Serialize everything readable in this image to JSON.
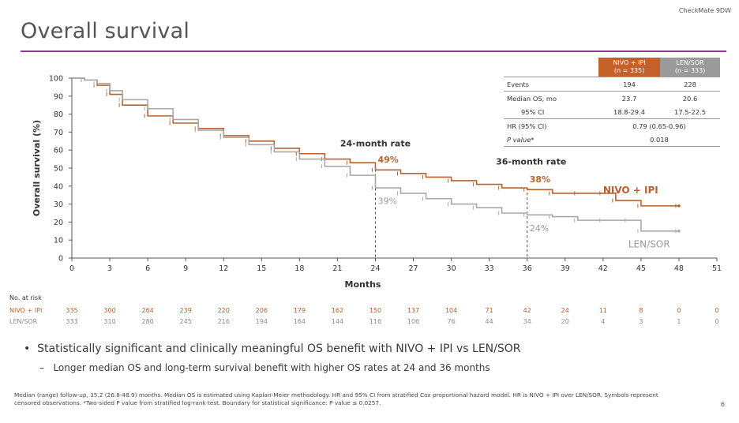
{
  "header": {
    "trial_label": "CheckMate 9DW",
    "title": "Overall survival"
  },
  "colors": {
    "nivo": "#b8622f",
    "lensor": "#a8a8a8",
    "accent": "#9b2f9b"
  },
  "table": {
    "col_nivo": [
      "NIVO + IPI",
      "(n = 335)"
    ],
    "col_len": [
      "LEN/SOR",
      "(n = 333)"
    ],
    "rows": [
      {
        "label": "Events",
        "nivo": "194",
        "len": "228"
      },
      {
        "label": "Median OS, mo",
        "nivo": "23.7",
        "len": "20.6"
      },
      {
        "label": "95% CI",
        "nivo": "18.8-29.4",
        "len": "17.5-22.5"
      },
      {
        "label": "HR (95% CI)",
        "span": "0.79 (0.65-0.96)"
      },
      {
        "label": "P value*",
        "span": "0.018"
      }
    ]
  },
  "chart_data": {
    "type": "line",
    "xlabel": "Months",
    "ylabel": "Overall survival (%)",
    "xlim": [
      0,
      51
    ],
    "ylim": [
      0,
      100
    ],
    "x_ticks": [
      0,
      3,
      6,
      9,
      12,
      15,
      18,
      21,
      24,
      27,
      30,
      33,
      36,
      39,
      42,
      45,
      48,
      51
    ],
    "y_ticks": [
      0,
      10,
      20,
      30,
      40,
      50,
      60,
      70,
      80,
      90,
      100
    ],
    "series": [
      {
        "name": "NIVO + IPI",
        "color": "#b8622f",
        "x": [
          0,
          1,
          2,
          3,
          4,
          6,
          8,
          10,
          12,
          14,
          16,
          18,
          20,
          22,
          24,
          26,
          28,
          30,
          32,
          34,
          36,
          38,
          40,
          42,
          43,
          45,
          48
        ],
        "y": [
          100,
          99,
          96,
          91,
          85,
          79,
          75,
          72,
          68,
          65,
          61,
          58,
          55,
          53,
          49,
          47,
          45,
          43,
          41,
          39,
          38,
          36,
          36,
          36,
          32,
          29,
          29
        ]
      },
      {
        "name": "LEN/SOR",
        "color": "#a8a8a8",
        "x": [
          0,
          1,
          2,
          3,
          4,
          6,
          8,
          10,
          12,
          14,
          16,
          18,
          20,
          22,
          24,
          26,
          28,
          30,
          32,
          34,
          36,
          38,
          40,
          42,
          44,
          45,
          48
        ],
        "y": [
          100,
          99,
          97,
          93,
          88,
          83,
          77,
          71,
          67,
          63,
          59,
          55,
          51,
          46,
          39,
          36,
          33,
          30,
          28,
          25,
          24,
          23,
          21,
          21,
          21,
          15,
          15
        ]
      }
    ],
    "annotations": {
      "rate24": {
        "label": "24-month rate",
        "x": 24,
        "nivo": "49%",
        "len": "39%"
      },
      "rate36": {
        "label": "36-month rate",
        "x": 36,
        "nivo": "38%",
        "len": "24%"
      },
      "nivo_label": "NIVO + IPI",
      "len_label": "LEN/SOR"
    }
  },
  "risk": {
    "title": "No. at risk",
    "rows": [
      {
        "label": "NIVO + IPI",
        "color": "#b8622f",
        "values": [
          "335",
          "300",
          "264",
          "239",
          "220",
          "206",
          "179",
          "162",
          "150",
          "137",
          "104",
          "71",
          "42",
          "24",
          "11",
          "8",
          "0",
          "0"
        ]
      },
      {
        "label": "LEN/SOR",
        "color": "#8c8c8c",
        "values": [
          "333",
          "310",
          "280",
          "245",
          "216",
          "194",
          "164",
          "144",
          "116",
          "106",
          "76",
          "44",
          "34",
          "20",
          "4",
          "3",
          "1",
          "0"
        ]
      }
    ]
  },
  "bullets": {
    "main": "Statistically significant and clinically meaningful OS benefit with NIVO + IPI vs LEN/SOR",
    "sub": "Longer median OS and long-term survival benefit with higher OS rates at 24 and 36 months"
  },
  "footnote": "Median (range) follow-up, 35.2 (26.8-48.9) months. Median OS is estimated using Kaplan-Meier methodology. HR and 95% CI from stratified Cox proportional hazard model. HR is NIVO + IPI over LEN/SOR. Symbols represent censored observations. *Two-sided P value from stratified log-rank test. Boundary for statistical significance: P value ≤ 0.0257.",
  "page": "6"
}
